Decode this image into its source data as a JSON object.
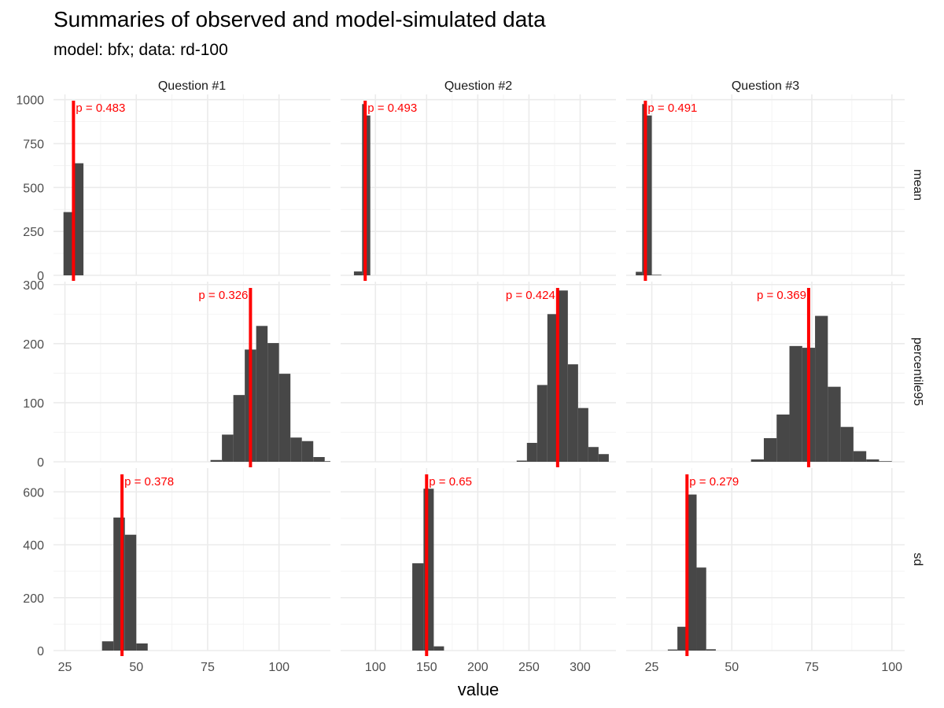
{
  "chart": {
    "title": "Summaries of observed and model-simulated data",
    "subtitle": "model: bfx; data: rd-100",
    "xlabel": "value"
  },
  "colors": {
    "bars": "#474747",
    "observed_line": "#ff0000",
    "grid": "#ebebeb",
    "background": "#ffffff"
  },
  "chart_data": {
    "type": "bar",
    "subtype": "faceted histogram",
    "title": "Summaries of observed and model-simulated data",
    "subtitle": "model: bfx; data: rd-100",
    "xlabel": "value",
    "ylabel": "",
    "grid": true,
    "legend": "none",
    "columns": [
      "Question #1",
      "Question #2",
      "Question #3"
    ],
    "rows": [
      "mean",
      "percentile95",
      "sd"
    ],
    "x_axes": [
      {
        "column": "Question #1",
        "xlim": [
          21,
          118
        ],
        "ticks": [
          25,
          50,
          75,
          100
        ]
      },
      {
        "column": "Question #2",
        "xlim": [
          66,
          335
        ],
        "ticks": [
          100,
          150,
          200,
          250,
          300
        ]
      },
      {
        "column": "Question #3",
        "xlim": [
          17,
          104
        ],
        "ticks": [
          25,
          50,
          75,
          100
        ]
      }
    ],
    "y_axes": [
      {
        "row": "mean",
        "ylim": [
          0,
          1030
        ],
        "ticks": [
          0,
          250,
          500,
          750,
          1000
        ]
      },
      {
        "row": "percentile95",
        "ylim": [
          0,
          305
        ],
        "ticks": [
          0,
          100,
          200,
          300
        ]
      },
      {
        "row": "sd",
        "ylim": [
          0,
          690
        ],
        "ticks": [
          0,
          200,
          400,
          600
        ]
      }
    ],
    "panels": [
      {
        "column": "Question #1",
        "row": "mean",
        "observed": 28,
        "p_label": "p = 0.483",
        "label_side": "right",
        "bins": [
          [
            24.5,
            28,
            360
          ],
          [
            28,
            31.5,
            638
          ]
        ]
      },
      {
        "column": "Question #2",
        "row": "mean",
        "observed": 90,
        "p_label": "p = 0.493",
        "label_side": "right",
        "bins": [
          [
            79,
            87,
            22
          ],
          [
            87,
            91,
            975
          ],
          [
            91,
            95,
            910
          ]
        ]
      },
      {
        "column": "Question #3",
        "row": "mean",
        "observed": 23,
        "p_label": "p = 0.491",
        "label_side": "right",
        "bins": [
          [
            20,
            22,
            20
          ],
          [
            22,
            23.5,
            975
          ],
          [
            23.5,
            25,
            910
          ],
          [
            25,
            28,
            3
          ]
        ]
      },
      {
        "column": "Question #1",
        "row": "percentile95",
        "observed": 90,
        "p_label": "p = 0.326",
        "label_side": "left",
        "bins": [
          [
            76,
            80,
            3
          ],
          [
            80,
            84,
            46
          ],
          [
            84,
            88,
            113
          ],
          [
            88,
            92,
            190
          ],
          [
            92,
            96,
            230
          ],
          [
            96,
            100,
            201
          ],
          [
            100,
            104,
            149
          ],
          [
            104,
            108,
            41
          ],
          [
            108,
            112,
            35
          ],
          [
            112,
            116,
            8
          ],
          [
            116,
            118,
            1
          ]
        ]
      },
      {
        "column": "Question #2",
        "row": "percentile95",
        "observed": 278,
        "p_label": "p = 0.424",
        "label_side": "left",
        "bins": [
          [
            238,
            248,
            2
          ],
          [
            248,
            258,
            32
          ],
          [
            258,
            268,
            130
          ],
          [
            268,
            278,
            250
          ],
          [
            278,
            288,
            290
          ],
          [
            288,
            298,
            165
          ],
          [
            298,
            308,
            91
          ],
          [
            308,
            318,
            25
          ],
          [
            318,
            328,
            13
          ]
        ]
      },
      {
        "column": "Question #3",
        "row": "percentile95",
        "observed": 74,
        "p_label": "p = 0.369",
        "label_side": "left",
        "bins": [
          [
            56,
            60,
            4
          ],
          [
            60,
            64,
            40
          ],
          [
            64,
            68,
            80
          ],
          [
            68,
            72,
            196
          ],
          [
            72,
            76,
            193
          ],
          [
            76,
            80,
            247
          ],
          [
            80,
            84,
            127
          ],
          [
            84,
            88,
            59
          ],
          [
            88,
            92,
            18
          ],
          [
            92,
            96,
            4
          ],
          [
            96,
            100,
            1
          ]
        ]
      },
      {
        "column": "Question #1",
        "row": "sd",
        "observed": 45,
        "p_label": "p = 0.378",
        "label_side": "right",
        "bins": [
          [
            38,
            42,
            35
          ],
          [
            42,
            46,
            503
          ],
          [
            46,
            50,
            438
          ],
          [
            50,
            54,
            27
          ]
        ]
      },
      {
        "column": "Question #2",
        "row": "sd",
        "observed": 150,
        "p_label": "p = 0.65",
        "label_side": "right",
        "bins": [
          [
            136,
            147,
            330
          ],
          [
            147,
            157,
            612
          ],
          [
            157,
            167,
            16
          ]
        ]
      },
      {
        "column": "Question #3",
        "row": "sd",
        "observed": 36,
        "p_label": "p = 0.279",
        "label_side": "right",
        "bins": [
          [
            30,
            33,
            4
          ],
          [
            33,
            36,
            90
          ],
          [
            36,
            39,
            590
          ],
          [
            39,
            42,
            314
          ],
          [
            42,
            45,
            5
          ]
        ]
      }
    ]
  }
}
